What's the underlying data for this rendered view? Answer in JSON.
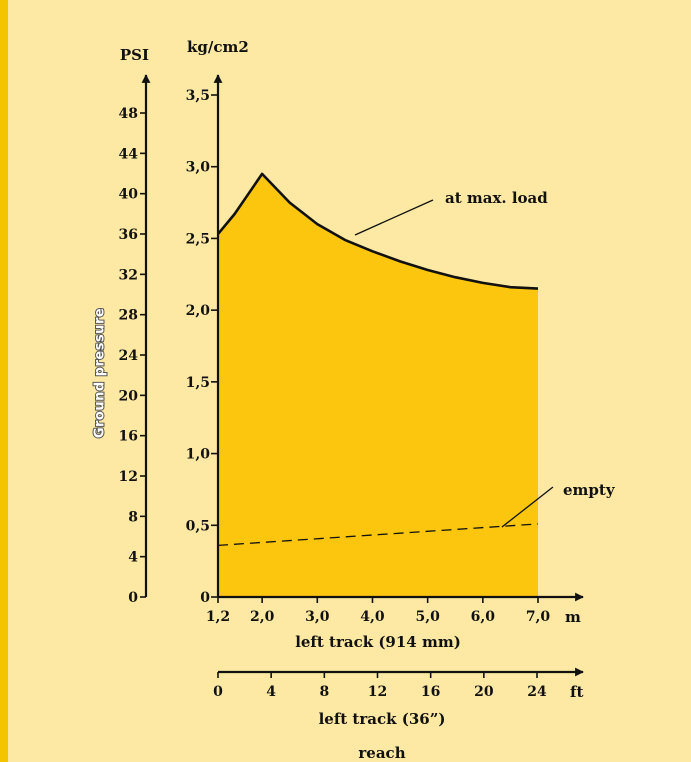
{
  "colors": {
    "fill": "#fcc60e",
    "background": "#fde9a3",
    "border": "#f5c400",
    "ink": "#111111"
  },
  "chart_data": {
    "type": "area",
    "ylabel": "Ground pressure",
    "y_left": {
      "unit": "PSI",
      "ticks": [
        0,
        4,
        8,
        12,
        16,
        20,
        24,
        28,
        32,
        36,
        40,
        44,
        48
      ]
    },
    "y_right": {
      "unit": "kg/cm2",
      "ticks": [
        "0",
        "0,5",
        "1,0",
        "1,5",
        "2,0",
        "2,5",
        "3,0",
        "3,5"
      ],
      "ylim": [
        0,
        3.5
      ]
    },
    "x_axis_m": {
      "unit": "m",
      "ticks": [
        "1,2",
        "2,0",
        "3,0",
        "4,0",
        "5,0",
        "6,0",
        "7,0"
      ],
      "xlim": [
        1.2,
        7.0
      ],
      "label": "left track (914 mm)"
    },
    "x_axis_ft": {
      "unit": "ft",
      "ticks": [
        "0",
        "4",
        "8",
        "12",
        "16",
        "20",
        "24"
      ],
      "label": "left track (36”)"
    },
    "footer_label": "reach",
    "series": [
      {
        "name": "at max. load",
        "style": "solid-filled",
        "x": [
          1.2,
          1.5,
          2.0,
          2.5,
          3.0,
          3.5,
          4.0,
          4.5,
          5.0,
          5.5,
          6.0,
          6.5,
          7.0
        ],
        "y": [
          2.53,
          2.67,
          2.95,
          2.75,
          2.6,
          2.49,
          2.41,
          2.34,
          2.28,
          2.23,
          2.19,
          2.16,
          2.15
        ]
      },
      {
        "name": "empty",
        "style": "dashed",
        "x": [
          1.2,
          7.0
        ],
        "y": [
          0.36,
          0.51
        ]
      }
    ]
  }
}
